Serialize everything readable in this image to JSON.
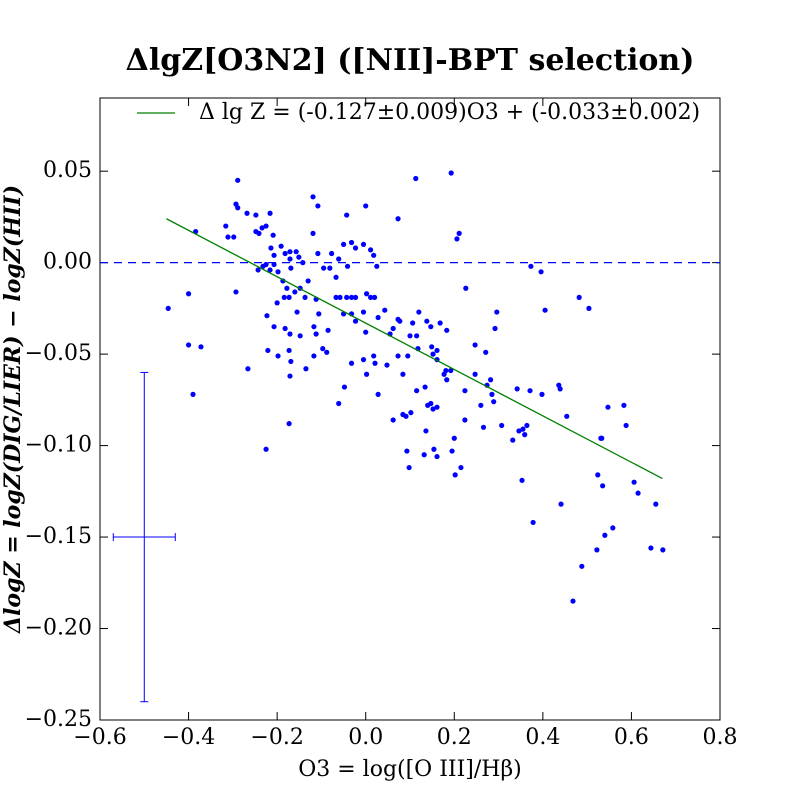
{
  "chart_data": {
    "type": "scatter",
    "title": "ΔlgZ[O3N2] ([NII]-BPT selection)",
    "x_label": "O3 = log([O III]/Hβ)",
    "y_label": "ΔlogZ = logZ(DIG/LIER) − logZ(HII)",
    "xlim": [
      -0.6,
      0.8
    ],
    "ylim": [
      -0.25,
      0.09
    ],
    "xticks": [
      {
        "value": -0.6,
        "label": "−0.6"
      },
      {
        "value": -0.4,
        "label": "−0.4"
      },
      {
        "value": -0.2,
        "label": "−0.2"
      },
      {
        "value": 0.0,
        "label": "0.0"
      },
      {
        "value": 0.2,
        "label": "0.2"
      },
      {
        "value": 0.4,
        "label": "0.4"
      },
      {
        "value": 0.6,
        "label": "0.6"
      },
      {
        "value": 0.8,
        "label": "0.8"
      }
    ],
    "yticks": [
      {
        "value": -0.25,
        "label": "−0.25"
      },
      {
        "value": -0.2,
        "label": "−0.20"
      },
      {
        "value": -0.15,
        "label": "−0.15"
      },
      {
        "value": -0.1,
        "label": "−0.10"
      },
      {
        "value": -0.05,
        "label": "−0.05"
      },
      {
        "value": 0.0,
        "label": "0.00"
      },
      {
        "value": 0.05,
        "label": "0.05"
      }
    ],
    "hline": 0,
    "hline_color": "#0000ff",
    "errorbar": {
      "x": -0.5,
      "y": -0.15,
      "xerr": 0.07,
      "yerr": 0.09,
      "color": "#0000ff"
    },
    "legend": "upper left",
    "series": [
      {
        "color": "#0000ff",
        "x": [
          -0.446,
          -0.384,
          -0.4,
          -0.4,
          -0.372,
          -0.39,
          -0.289,
          -0.293,
          -0.289,
          -0.316,
          -0.311,
          -0.298,
          -0.293,
          -0.268,
          -0.248,
          -0.248,
          -0.241,
          -0.234,
          -0.225,
          -0.216,
          -0.209,
          -0.214,
          -0.207,
          -0.225,
          -0.232,
          -0.243,
          -0.216,
          -0.207,
          -0.191,
          -0.182,
          -0.171,
          -0.157,
          -0.198,
          -0.187,
          -0.169,
          -0.151,
          -0.142,
          -0.178,
          -0.184,
          -0.173,
          -0.16,
          -0.148,
          -0.13,
          -0.2,
          -0.223,
          -0.207,
          -0.182,
          -0.171,
          -0.155,
          -0.137,
          -0.112,
          -0.106,
          -0.112,
          -0.117,
          -0.085,
          -0.097,
          -0.088,
          -0.148,
          -0.173,
          -0.221,
          -0.198,
          -0.169,
          -0.171,
          -0.135,
          -0.117,
          -0.266,
          -0.225,
          -0.173,
          -0.119,
          -0.108,
          -0.119,
          -0.108,
          -0.095,
          -0.081,
          -0.077,
          -0.061,
          -0.05,
          -0.067,
          -0.067,
          -0.058,
          -0.043,
          -0.032,
          -0.023,
          -0.05,
          -0.032,
          -0.023,
          -0.043,
          -0.032,
          -0.023,
          -0.041,
          -0.005,
          0.0,
          0.011,
          0.018,
          0.025,
          0.002,
          0.011,
          0.02,
          -0.005,
          0.0,
          0.018,
          0.028,
          0.043,
          0.002,
          -0.005,
          -0.032,
          -0.048,
          -0.061,
          0.028,
          0.021,
          0.048,
          0.073,
          0.084,
          0.055,
          0.062,
          0.073,
          0.077,
          0.073,
          0.106,
          0.12,
          0.1,
          0.115,
          0.118,
          0.095,
          0.091,
          0.102,
          0.084,
          0.062,
          0.093,
          0.098,
          0.115,
          0.113,
          0.138,
          0.147,
          0.149,
          0.161,
          0.161,
          0.152,
          0.134,
          0.147,
          0.152,
          0.14,
          0.161,
          0.136,
          0.132,
          0.154,
          0.161,
          0.168,
          0.183,
          0.193,
          0.206,
          0.211,
          0.177,
          0.181,
          0.183,
          0.192,
          0.2,
          0.195,
          0.202,
          0.215,
          0.224,
          0.224,
          0.226,
          0.247,
          0.247,
          0.271,
          0.26,
          0.266,
          0.282,
          0.274,
          0.292,
          0.296,
          0.285,
          0.289,
          0.307,
          0.332,
          0.342,
          0.355,
          0.346,
          0.364,
          0.359,
          0.353,
          0.378,
          0.373,
          0.396,
          0.371,
          0.398,
          0.405,
          0.436,
          0.439,
          0.441,
          0.454,
          0.468,
          0.488,
          0.482,
          0.504,
          0.522,
          0.524,
          0.531,
          0.533,
          0.535,
          0.54,
          0.547,
          0.558,
          0.583,
          0.588,
          0.606,
          0.615,
          0.644,
          0.655,
          0.671,
          -0.171
        ],
        "values": [
          -0.025,
          0.017,
          -0.017,
          -0.045,
          -0.046,
          -0.072,
          0.045,
          0.032,
          0.03,
          0.02,
          0.014,
          0.014,
          -0.016,
          0.027,
          0.026,
          0.017,
          0.016,
          0.019,
          0.02,
          0.027,
          0.015,
          0.008,
          0.004,
          -0.001,
          -0.002,
          -0.004,
          -0.004,
          -0.001,
          0.009,
          0.005,
          0.006,
          0.006,
          -0.005,
          -0.01,
          -0.003,
          0.003,
          0.0,
          -0.014,
          -0.019,
          -0.019,
          -0.016,
          -0.014,
          -0.01,
          -0.022,
          -0.029,
          -0.035,
          -0.036,
          -0.039,
          -0.027,
          -0.019,
          -0.02,
          -0.028,
          -0.039,
          -0.035,
          -0.037,
          -0.047,
          -0.049,
          -0.04,
          -0.048,
          -0.048,
          -0.051,
          -0.054,
          -0.062,
          -0.058,
          -0.051,
          -0.058,
          -0.102,
          -0.088,
          0.036,
          0.031,
          0.016,
          0.005,
          -0.003,
          -0.003,
          0.005,
          0.002,
          0.01,
          -0.008,
          -0.019,
          -0.019,
          -0.019,
          -0.019,
          -0.019,
          -0.028,
          -0.028,
          -0.032,
          0.026,
          0.011,
          0.008,
          -0.002,
          0.01,
          0.031,
          0.007,
          0.004,
          -0.002,
          -0.017,
          -0.019,
          -0.019,
          -0.027,
          -0.038,
          -0.051,
          -0.03,
          -0.026,
          -0.061,
          -0.053,
          -0.055,
          -0.068,
          -0.077,
          -0.072,
          -0.055,
          -0.056,
          -0.051,
          -0.061,
          -0.039,
          -0.036,
          -0.031,
          -0.032,
          0.024,
          -0.033,
          -0.027,
          -0.04,
          -0.04,
          -0.047,
          -0.051,
          -0.084,
          -0.082,
          -0.083,
          -0.086,
          -0.103,
          -0.112,
          -0.07,
          0.046,
          -0.032,
          -0.035,
          -0.046,
          -0.048,
          -0.053,
          -0.05,
          -0.068,
          -0.077,
          -0.08,
          -0.078,
          -0.079,
          -0.092,
          -0.105,
          -0.102,
          -0.106,
          -0.033,
          -0.037,
          0.049,
          0.013,
          0.016,
          -0.061,
          -0.059,
          -0.064,
          -0.059,
          -0.096,
          -0.103,
          -0.116,
          -0.112,
          -0.086,
          -0.07,
          -0.014,
          -0.045,
          -0.061,
          -0.049,
          -0.078,
          -0.09,
          -0.064,
          -0.067,
          -0.036,
          -0.027,
          -0.072,
          -0.076,
          -0.089,
          -0.097,
          -0.069,
          -0.091,
          -0.092,
          -0.089,
          -0.094,
          -0.119,
          -0.142,
          -0.002,
          -0.005,
          -0.07,
          -0.072,
          -0.026,
          -0.067,
          -0.069,
          -0.132,
          -0.084,
          -0.185,
          -0.166,
          -0.019,
          -0.025,
          -0.157,
          -0.116,
          -0.096,
          -0.096,
          -0.122,
          -0.149,
          -0.079,
          -0.145,
          -0.078,
          -0.089,
          -0.12,
          -0.126,
          -0.156,
          -0.132,
          -0.157,
          0.002
        ]
      },
      {
        "name": "Δ lg Z = (-0.127±0.009)O3 + (-0.033±0.002)",
        "color": "#008000",
        "type": "line",
        "x": [
          -0.45,
          0.67
        ],
        "values": [
          0.024,
          -0.118
        ]
      }
    ]
  }
}
